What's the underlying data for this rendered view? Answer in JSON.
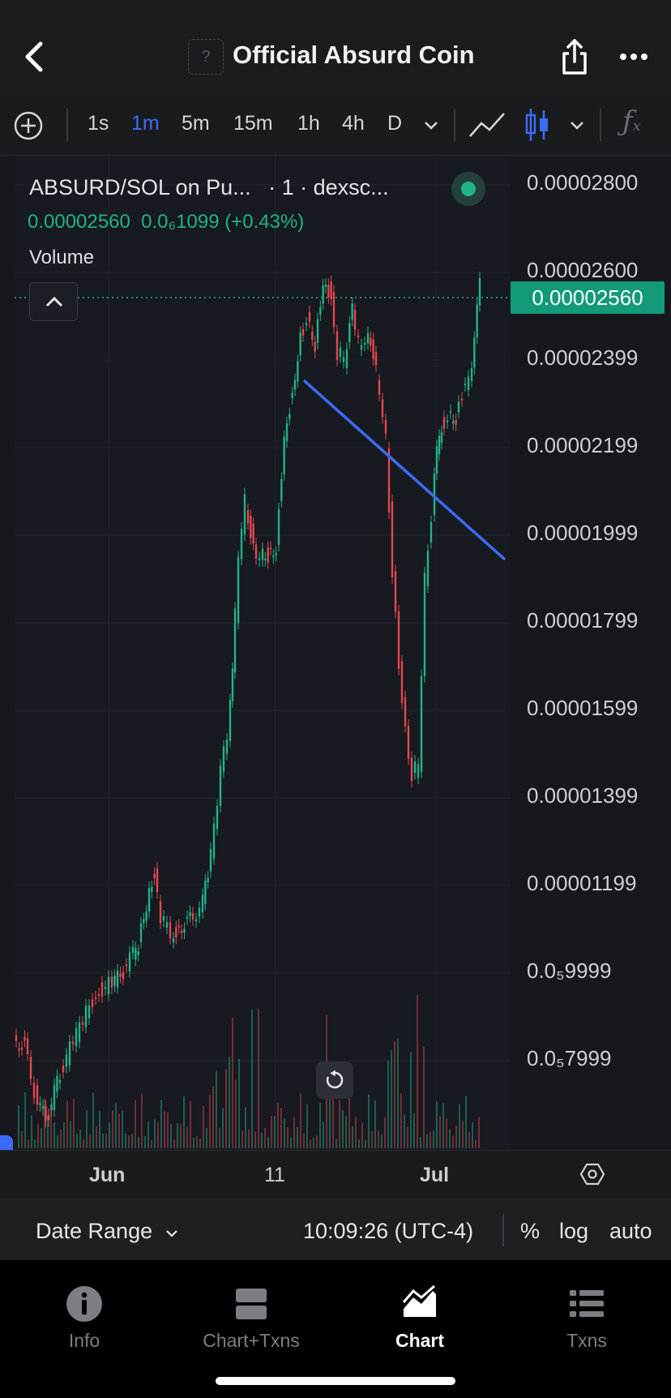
{
  "header": {
    "title": "Official Absurd Coin",
    "token_logo_placeholder": "?"
  },
  "toolbar": {
    "intervals": [
      "1s",
      "1m",
      "5m",
      "15m",
      "1h",
      "4h",
      "D"
    ],
    "active_interval": "1m"
  },
  "chart": {
    "pair_label": "ABSURD/SOL on Pu...",
    "meta_label": "· 1 · dexsc...",
    "price_info": "0.00002560  0.0₆1099 (+0.43%)",
    "volume_label": "Volume",
    "current_price": "0.00002560",
    "price_axis": [
      "0.00002800",
      "0.00002600",
      "0.00002399",
      "0.00002199",
      "0.00001999",
      "0.00001799",
      "0.00001599",
      "0.00001399",
      "0.00001199",
      "0.0₅9999",
      "0.0₅7999"
    ],
    "time_axis": [
      "Jun",
      "11",
      "Jul"
    ],
    "colors": {
      "up": "#22b38a",
      "down": "#e5484d",
      "trendline": "#3b6cf6"
    }
  },
  "range_bar": {
    "date_range_label": "Date Range",
    "time": "10:09:26 (UTC-4)",
    "percent": "%",
    "log": "log",
    "auto": "auto"
  },
  "nav": {
    "items": [
      {
        "label": "Info",
        "icon": "info-icon"
      },
      {
        "label": "Chart+Txns",
        "icon": "split-view-icon"
      },
      {
        "label": "Chart",
        "icon": "chart-icon"
      },
      {
        "label": "Txns",
        "icon": "list-icon"
      }
    ],
    "active": "Chart"
  }
}
